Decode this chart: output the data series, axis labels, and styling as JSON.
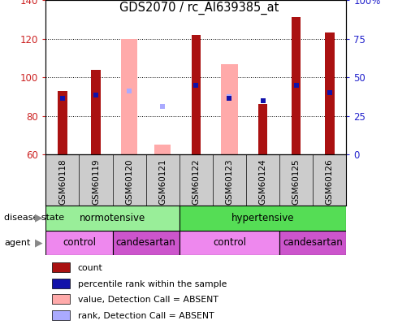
{
  "title": "GDS2070 / rc_AI639385_at",
  "samples": [
    "GSM60118",
    "GSM60119",
    "GSM60120",
    "GSM60121",
    "GSM60122",
    "GSM60123",
    "GSM60124",
    "GSM60125",
    "GSM60126"
  ],
  "ylim": [
    60,
    140
  ],
  "yticks_left": [
    60,
    80,
    100,
    120,
    140
  ],
  "yticks_right": [
    0,
    25,
    50,
    75,
    100
  ],
  "ytick_right_labels": [
    "0",
    "25",
    "50",
    "75",
    "100%"
  ],
  "count_values": [
    93,
    104,
    null,
    null,
    122,
    null,
    86,
    131,
    123
  ],
  "rank_values": [
    89,
    91,
    null,
    null,
    96,
    89,
    88,
    96,
    92
  ],
  "absent_value_values": [
    null,
    null,
    120,
    65,
    null,
    107,
    null,
    null,
    null
  ],
  "absent_rank_values": [
    null,
    null,
    93,
    85,
    null,
    90,
    null,
    null,
    null
  ],
  "count_color": "#aa1111",
  "rank_color": "#1111aa",
  "absent_value_color": "#ffaaaa",
  "absent_rank_color": "#aaaaff",
  "disease_state_normotensive_color": "#99ee99",
  "disease_state_hypertensive_color": "#55dd55",
  "agent_control_color": "#ee88ee",
  "agent_candesartan_color": "#cc55cc",
  "left_ylabel_color": "#cc2222",
  "right_ylabel_color": "#2222cc",
  "label_area_color": "#cccccc",
  "background_color": "#ffffff"
}
